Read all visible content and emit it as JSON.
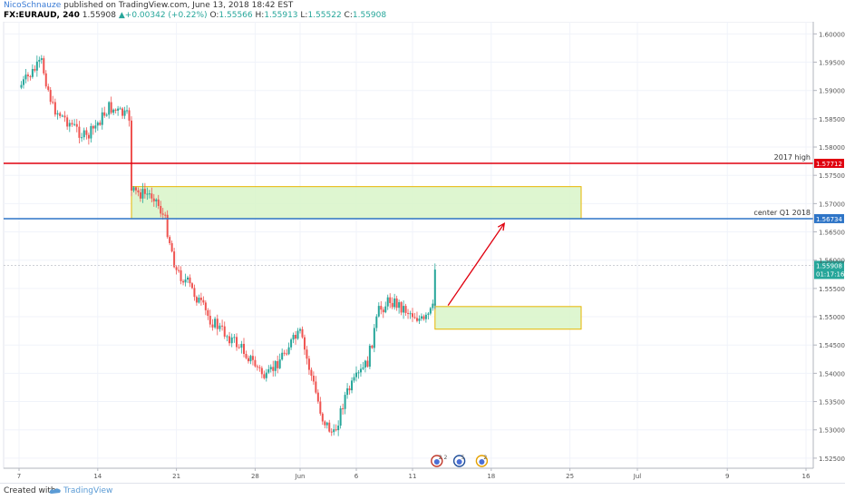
{
  "header": {
    "author": "NicoSchnauze",
    "published": "published on TradingView.com, June 13, 2018 18:42 EST",
    "symbol": "FX:EURAUD, 240",
    "last": "1.55908",
    "change_arrow": "▲",
    "change": "+0.00342 (+0.22%)",
    "o_label": "O:",
    "o_value": "1.55566",
    "h_label": "H:",
    "h_value": "1.55913",
    "l_label": "L:",
    "l_value": "1.55522",
    "c_label": "C:",
    "c_value": "1.55908"
  },
  "price_axis": {
    "ticks": [
      "1.60000",
      "1.59500",
      "1.59000",
      "1.58500",
      "1.58000",
      "1.57500",
      "1.57000",
      "1.56500",
      "1.56000",
      "1.55500",
      "1.55000",
      "1.54500",
      "1.54000",
      "1.53500",
      "1.53000",
      "1.52500"
    ]
  },
  "time_axis": {
    "ticks": [
      "7",
      "14",
      "21",
      "28",
      "Jun",
      "6",
      "11",
      "18",
      "25",
      "Jul",
      "9",
      "16"
    ]
  },
  "levels": [
    {
      "name": "2017 high",
      "price_label": "1.57712",
      "color": "#e0000f"
    },
    {
      "name": "center Q1 2018",
      "price_label": "1.56734",
      "color": "#2e75c7"
    }
  ],
  "current": {
    "price_label": "1.55908",
    "countdown": "01:17:16",
    "color": "#26a69a"
  },
  "colors": {
    "up": "#26a69a",
    "down": "#ef5350",
    "zone_fill": "#d8f5c8",
    "zone_border": "#e7b500",
    "arrow": "#e0000f"
  },
  "footer": {
    "created": "Created with",
    "brand": "TradingView"
  },
  "event_icons": [
    {
      "name": "calendar-event-icon",
      "label": "2 2"
    },
    {
      "name": "earth-event-icon",
      "label": "5"
    },
    {
      "name": "news-event-icon",
      "label": "2"
    }
  ],
  "chart_data": {
    "type": "candlestick",
    "symbol": "FX:EURAUD",
    "interval": "240",
    "ylim": [
      1.5245,
      1.6015
    ],
    "horizontal_levels": [
      {
        "label": "2017 high",
        "value": 1.57712
      },
      {
        "label": "center Q1 2018",
        "value": 1.56734
      },
      {
        "label": "current",
        "value": 1.55908
      }
    ],
    "zones": [
      {
        "from": 1.56734,
        "to": 1.573
      },
      {
        "from": 1.5478,
        "to": 1.5518
      }
    ],
    "projection_arrow": {
      "from": 1.552,
      "to": 1.5665
    },
    "path_points": [
      {
        "x": "May 7",
        "y": 1.5905
      },
      {
        "x": "May 9",
        "y": 1.595
      },
      {
        "x": "May 10",
        "y": 1.587
      },
      {
        "x": "May 13",
        "y": 1.5815
      },
      {
        "x": "May 15",
        "y": 1.587
      },
      {
        "x": "May 17",
        "y": 1.585
      },
      {
        "x": "May 17",
        "y": 1.572
      },
      {
        "x": "May 19",
        "y": 1.5715
      },
      {
        "x": "May 20",
        "y": 1.567
      },
      {
        "x": "May 21",
        "y": 1.558
      },
      {
        "x": "May 22",
        "y": 1.556
      },
      {
        "x": "May 24",
        "y": 1.5495
      },
      {
        "x": "May 27",
        "y": 1.544
      },
      {
        "x": "May 29",
        "y": 1.539
      },
      {
        "x": "May 31",
        "y": 1.545
      },
      {
        "x": "Jun 1",
        "y": 1.547
      },
      {
        "x": "Jun 3",
        "y": 1.532
      },
      {
        "x": "Jun 4",
        "y": 1.529
      },
      {
        "x": "Jun 5",
        "y": 1.536
      },
      {
        "x": "Jun 7",
        "y": 1.542
      },
      {
        "x": "Jun 8",
        "y": 1.551
      },
      {
        "x": "Jun 9",
        "y": 1.553
      },
      {
        "x": "Jun 11",
        "y": 1.5505
      },
      {
        "x": "Jun 12",
        "y": 1.549
      },
      {
        "x": "Jun 13",
        "y": 1.552
      },
      {
        "x": "Jun 13",
        "y": 1.5591
      }
    ]
  }
}
